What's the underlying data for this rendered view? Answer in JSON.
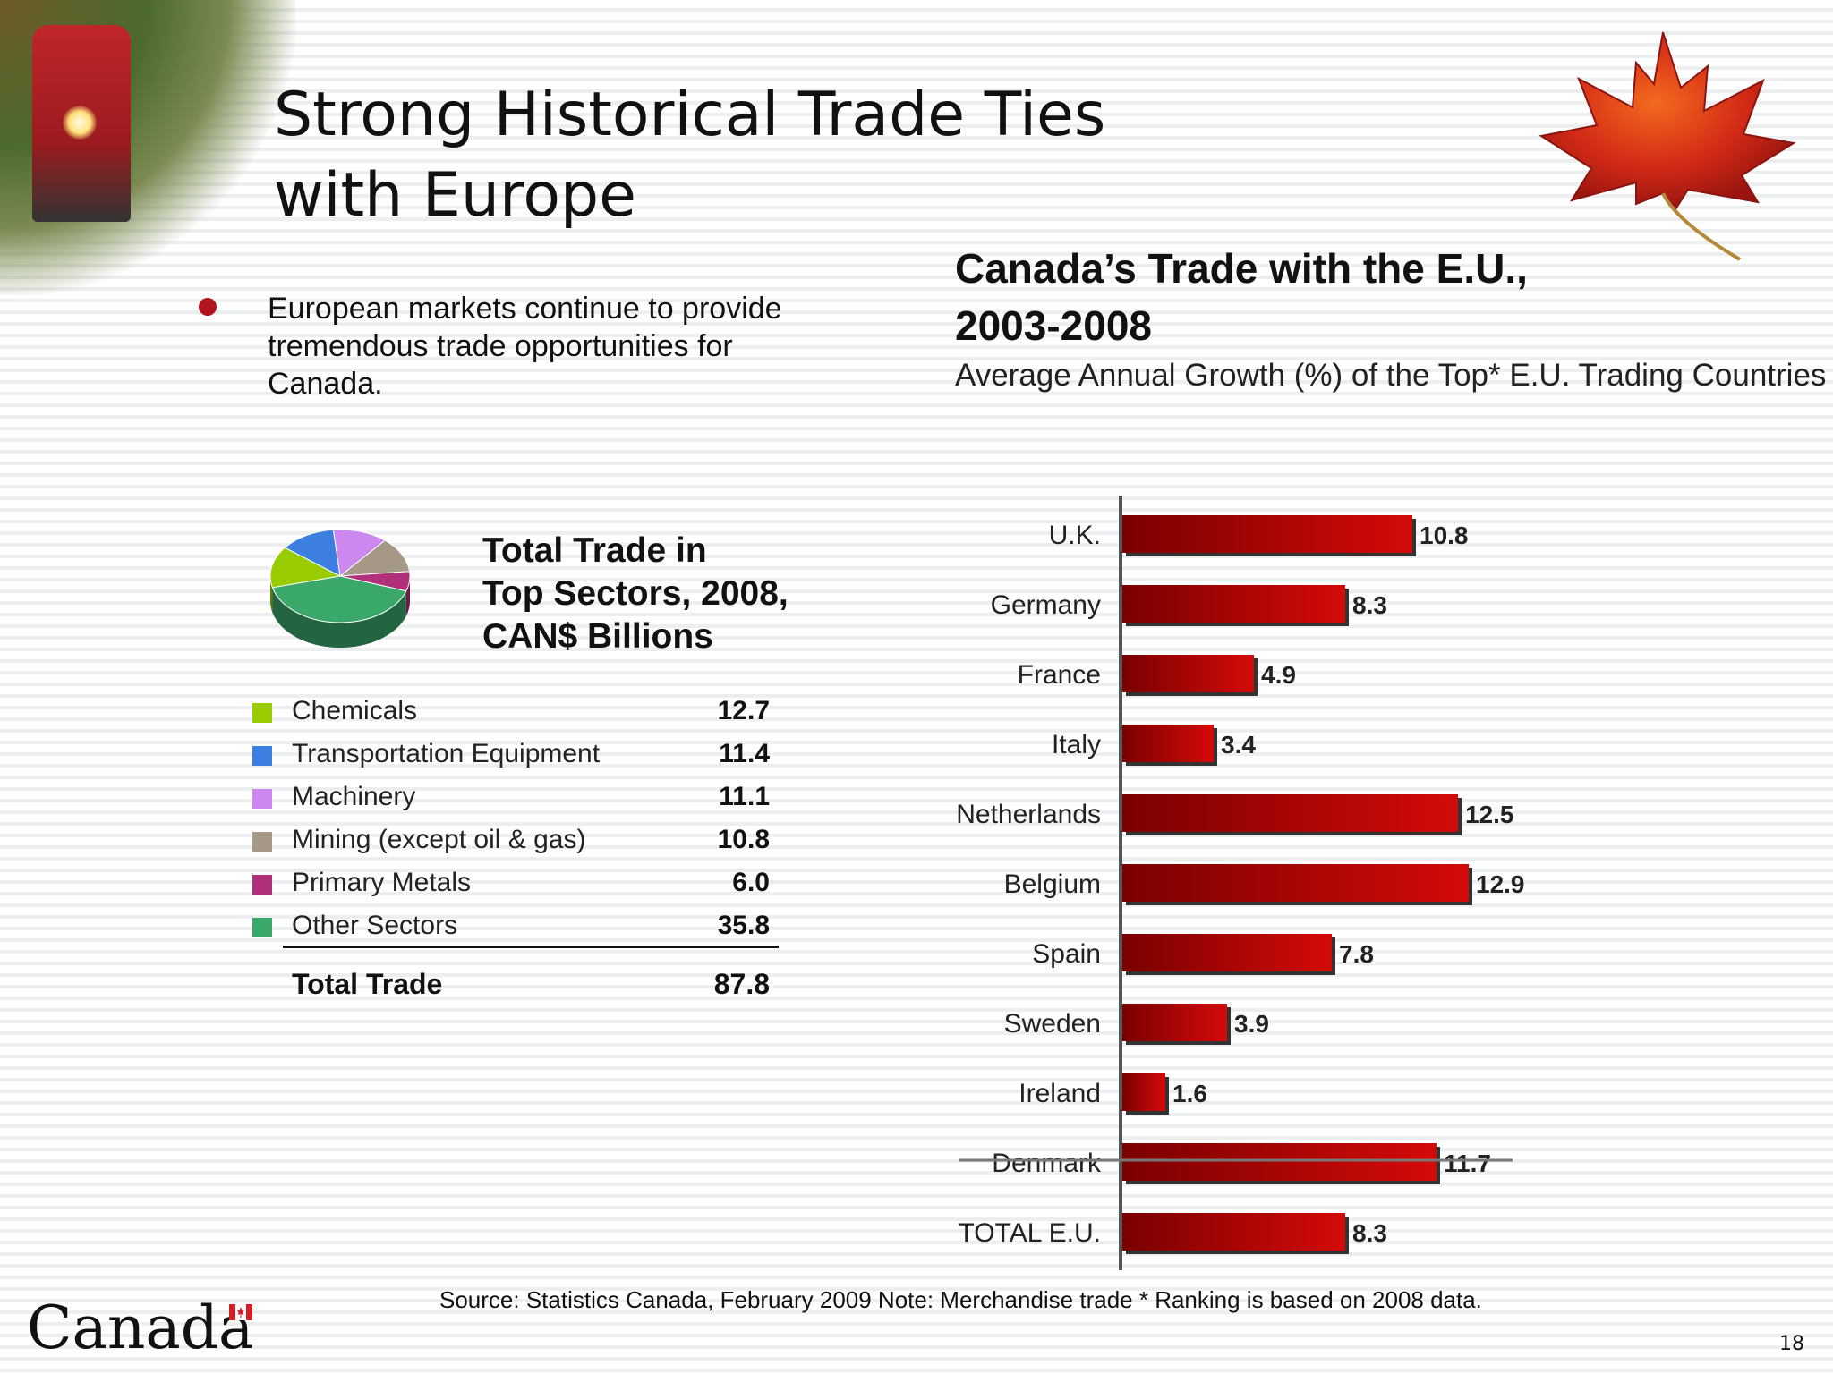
{
  "slide": {
    "title_lines": [
      "Strong Historical Trade Ties",
      "with Europe"
    ],
    "bullet": "European markets continue to provide tremendous trade opportunities for Canada.",
    "page_number": "18",
    "source_note": "Source: Statistics Canada, February 2009  Note: Merchandise trade  * Ranking is based on 2008 data.",
    "wordmark": "Canada"
  },
  "pie": {
    "title_lines": [
      "Total Trade in",
      "Top Sectors, 2008,",
      "CAN$ Billions"
    ],
    "total_label": "Total Trade",
    "total_value": "87.8"
  },
  "chart_data": [
    {
      "type": "pie",
      "title": "Total Trade in Top Sectors, 2008, CAN$ Billions",
      "categories": [
        "Chemicals",
        "Transportation Equipment",
        "Machinery",
        "Mining (except oil & gas)",
        "Primary Metals",
        "Other Sectors"
      ],
      "values": [
        12.7,
        11.4,
        11.1,
        10.8,
        6.0,
        35.8
      ],
      "value_labels": [
        "12.7",
        "11.4",
        "11.1",
        "10.8",
        "6.0",
        "35.8"
      ],
      "colors": [
        "#99cc00",
        "#3d7fe0",
        "#cc88ee",
        "#a59886",
        "#b0317a",
        "#3aa86a"
      ],
      "total": 87.8,
      "legend": "below"
    },
    {
      "type": "bar",
      "orientation": "horizontal",
      "title": "Canada’s Trade with the E.U., 2003-2008",
      "title_lines": [
        "Canada’s Trade with the E.U.,",
        "2003-2008"
      ],
      "subtitle": "Average Annual Growth (%) of the Top* E.U. Trading Countries",
      "categories": [
        "U.K.",
        "Germany",
        "France",
        "Italy",
        "Netherlands",
        "Belgium",
        "Spain",
        "Sweden",
        "Ireland",
        "Denmark",
        "TOTAL E.U."
      ],
      "values": [
        10.8,
        8.3,
        4.9,
        3.4,
        12.5,
        12.9,
        7.8,
        3.9,
        1.6,
        11.7,
        8.3
      ],
      "value_labels": [
        "10.8",
        "8.3",
        "4.9",
        "3.4",
        "12.5",
        "12.9",
        "7.8",
        "3.9",
        "1.6",
        "11.7",
        "8.3"
      ],
      "struck_category": "Denmark",
      "xlim": [
        0,
        14
      ],
      "bar_color": "#d40a0a",
      "grid": false
    }
  ]
}
